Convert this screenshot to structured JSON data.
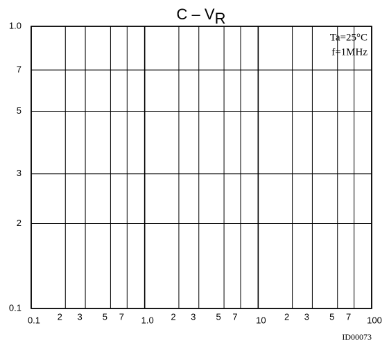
{
  "chart_data": {
    "type": "line",
    "title": "C – V",
    "title_subscript": "R",
    "annotations": [
      "Ta=25°C",
      "f=1MHz"
    ],
    "figure_id": "ID00073",
    "x_log": true,
    "y_log": true,
    "grid": true,
    "xlim": [
      0.1,
      100
    ],
    "ylim": [
      0.1,
      1
    ],
    "xticks": [
      0.1,
      {
        "value": 0.2,
        "label": "2"
      },
      {
        "value": 0.3,
        "label": "3"
      },
      {
        "value": 0.5,
        "label": "5"
      },
      {
        "value": 0.7,
        "label": "7"
      },
      {
        "value": 1,
        "label": "1.0"
      },
      2,
      3,
      5,
      7,
      10,
      {
        "value": 20,
        "label": "2"
      },
      {
        "value": 30,
        "label": "3"
      },
      {
        "value": 50,
        "label": "5"
      },
      {
        "value": 70,
        "label": "7"
      },
      100
    ],
    "yticks": [
      0.1,
      {
        "value": 0.2,
        "label": "2"
      },
      {
        "value": 0.3,
        "label": "3"
      },
      {
        "value": 0.5,
        "label": "5"
      },
      {
        "value": 0.7,
        "label": "7"
      },
      {
        "value": 1,
        "label": "1.0"
      }
    ]
  }
}
